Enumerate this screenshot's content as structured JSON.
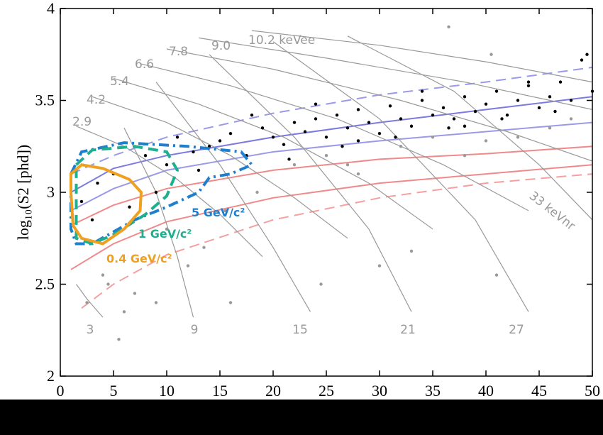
{
  "chart_data": {
    "type": "scatter",
    "y_label": "log₁₀(S2 [phd])",
    "xlim": [
      0,
      50
    ],
    "xticks": [
      0,
      5,
      10,
      15,
      20,
      25,
      30,
      35,
      40,
      45,
      50
    ],
    "ylim": [
      2,
      4
    ],
    "yticks": [
      2,
      2.5,
      3,
      3.5,
      4
    ],
    "annotations": [
      "10.2 keVee",
      "9.0",
      "7.8",
      "6.6",
      "5.4",
      "4.2",
      "2.9",
      "33 keVnr",
      "3",
      "9",
      "15",
      "21",
      "27"
    ],
    "lines": [
      {
        "color": "#9a9ae8",
        "dash": "dashed",
        "x": [
          1,
          5,
          10,
          20,
          30,
          40,
          50
        ],
        "y": [
          3.1,
          3.2,
          3.3,
          3.43,
          3.53,
          3.6,
          3.68
        ]
      },
      {
        "color": "#7a7ae0",
        "dash": "solid",
        "x": [
          1,
          5,
          10,
          20,
          30,
          40,
          50
        ],
        "y": [
          3.0,
          3.13,
          3.2,
          3.3,
          3.38,
          3.45,
          3.52
        ]
      },
      {
        "color": "#9a9ae8",
        "dash": "solid",
        "x": [
          1,
          5,
          10,
          20,
          30,
          40,
          50
        ],
        "y": [
          2.9,
          3.02,
          3.12,
          3.22,
          3.28,
          3.33,
          3.38
        ]
      },
      {
        "color": "#f08a8a",
        "dash": "solid",
        "x": [
          1,
          5,
          10,
          20,
          30,
          40,
          50
        ],
        "y": [
          2.82,
          2.93,
          3.02,
          3.12,
          3.18,
          3.21,
          3.25
        ]
      },
      {
        "color": "#f08a8a",
        "dash": "solid",
        "x": [
          1,
          5,
          10,
          20,
          30,
          40,
          50
        ],
        "y": [
          2.58,
          2.72,
          2.84,
          2.97,
          3.05,
          3.1,
          3.15
        ]
      },
      {
        "color": "#f4a0a0",
        "dash": "dashed",
        "x": [
          2,
          5,
          10,
          20,
          30,
          40,
          50
        ],
        "y": [
          2.37,
          2.5,
          2.66,
          2.85,
          2.97,
          3.05,
          3.1
        ]
      },
      {
        "color": "#999",
        "dash": "solid",
        "x": [
          18,
          30,
          40,
          50
        ],
        "y": [
          3.88,
          3.8,
          3.71,
          3.6
        ]
      },
      {
        "color": "#999",
        "dash": "solid",
        "x": [
          13,
          25,
          38,
          50
        ],
        "y": [
          3.84,
          3.73,
          3.6,
          3.45
        ]
      },
      {
        "color": "#999",
        "dash": "solid",
        "x": [
          10,
          20,
          32,
          42,
          50
        ],
        "y": [
          3.78,
          3.67,
          3.5,
          3.33,
          3.17
        ]
      },
      {
        "color": "#999",
        "dash": "solid",
        "x": [
          7.5,
          16,
          26,
          36,
          44
        ],
        "y": [
          3.7,
          3.58,
          3.4,
          3.15,
          2.9
        ]
      },
      {
        "color": "#999",
        "dash": "solid",
        "x": [
          5,
          13,
          21,
          29,
          35
        ],
        "y": [
          3.62,
          3.48,
          3.3,
          3.05,
          2.8
        ]
      },
      {
        "color": "#999",
        "dash": "solid",
        "x": [
          3,
          10,
          16,
          22,
          27
        ],
        "y": [
          3.52,
          3.38,
          3.2,
          2.97,
          2.75
        ]
      },
      {
        "color": "#999",
        "dash": "solid",
        "x": [
          1.5,
          6,
          11,
          15,
          19
        ],
        "y": [
          3.36,
          3.25,
          3.07,
          2.88,
          2.65
        ]
      },
      {
        "color": "#999",
        "dash": "solid",
        "x": [
          1.5,
          2.5,
          4
        ],
        "y": [
          2.5,
          2.42,
          2.32
        ]
      },
      {
        "color": "#999",
        "dash": "solid",
        "x": [
          6,
          9,
          11,
          12.5
        ],
        "y": [
          3.35,
          3.0,
          2.65,
          2.32
        ]
      },
      {
        "color": "#999",
        "dash": "solid",
        "x": [
          9,
          15,
          20,
          23.5
        ],
        "y": [
          3.6,
          3.15,
          2.7,
          2.35
        ]
      },
      {
        "color": "#999",
        "dash": "solid",
        "x": [
          14,
          22,
          29,
          33
        ],
        "y": [
          3.75,
          3.3,
          2.8,
          2.35
        ]
      },
      {
        "color": "#999",
        "dash": "solid",
        "x": [
          20,
          30,
          39,
          44
        ],
        "y": [
          3.82,
          3.4,
          2.85,
          2.35
        ]
      },
      {
        "color": "#999",
        "dash": "solid",
        "x": [
          27,
          37,
          45,
          50
        ],
        "y": [
          3.85,
          3.55,
          3.15,
          2.85
        ]
      }
    ],
    "contours": [
      {
        "label": "5 GeV/c²",
        "color": "#1f7fcf",
        "dash": "dashdot",
        "x": [
          1,
          2,
          6,
          12,
          17,
          18,
          16,
          14,
          13,
          10,
          7,
          3,
          1.5,
          1,
          1
        ],
        "y": [
          3.1,
          3.22,
          3.27,
          3.25,
          3.22,
          3.15,
          3.1,
          3.08,
          3.0,
          2.92,
          2.85,
          2.72,
          2.72,
          2.8,
          3.1
        ]
      },
      {
        "label": "1 GeV/c²",
        "color": "#1fae8e",
        "dash": "dashed",
        "x": [
          1.5,
          3,
          7,
          10,
          11,
          10,
          8,
          5,
          3,
          1.5,
          1.5
        ],
        "y": [
          3.15,
          3.23,
          3.25,
          3.22,
          3.12,
          2.98,
          2.88,
          2.77,
          2.72,
          2.75,
          3.15
        ]
      },
      {
        "label": "0.4 GeV/c²",
        "color": "#f0a020",
        "dash": "solid",
        "x": [
          1,
          1.2,
          2,
          4,
          6,
          7.5,
          7.6,
          6.5,
          4,
          2,
          1,
          1
        ],
        "y": [
          3.0,
          2.82,
          2.75,
          2.72,
          2.8,
          2.9,
          3.0,
          3.07,
          3.13,
          3.15,
          3.1,
          3.0
        ]
      }
    ],
    "points": [
      {
        "color": "#000",
        "x": [
          2,
          3.5,
          5,
          6.5,
          8,
          10,
          11,
          12.5,
          14,
          15,
          16,
          17.5,
          19,
          20,
          21,
          22,
          23,
          24,
          25,
          26,
          27,
          28,
          29,
          30,
          31,
          32,
          33,
          34,
          35,
          36,
          37,
          38,
          39,
          40,
          41,
          42,
          43,
          44,
          45,
          46,
          47,
          48,
          49,
          50,
          21.5,
          26.5,
          31.5,
          36.5,
          41.5,
          46.5,
          18,
          24,
          34,
          44,
          49.5,
          3,
          9,
          13,
          28,
          38
        ],
        "y": [
          2.95,
          3.05,
          3.1,
          2.92,
          3.2,
          3.15,
          3.3,
          3.22,
          3.25,
          3.28,
          3.32,
          3.2,
          3.35,
          3.3,
          3.26,
          3.38,
          3.33,
          3.4,
          3.3,
          3.42,
          3.35,
          3.45,
          3.38,
          3.32,
          3.47,
          3.4,
          3.36,
          3.5,
          3.42,
          3.46,
          3.4,
          3.52,
          3.44,
          3.48,
          3.55,
          3.42,
          3.5,
          3.58,
          3.46,
          3.52,
          3.6,
          3.5,
          3.72,
          3.55,
          3.18,
          3.25,
          3.3,
          3.35,
          3.4,
          3.44,
          3.42,
          3.48,
          3.55,
          3.6,
          3.75,
          2.85,
          3.0,
          3.12,
          3.28,
          3.36
        ]
      },
      {
        "color": "#999",
        "x": [
          2.5,
          4,
          5.5,
          7,
          9,
          12,
          13.5,
          16,
          18.5,
          22,
          25,
          28,
          32,
          35,
          38,
          40,
          43,
          46,
          48,
          36.5,
          40.5,
          30,
          24.5,
          15.5,
          10,
          6,
          4.5,
          41,
          33,
          27
        ],
        "y": [
          2.4,
          2.55,
          2.2,
          2.45,
          2.4,
          2.6,
          2.7,
          2.4,
          3.0,
          3.15,
          3.2,
          3.1,
          3.25,
          3.3,
          3.2,
          3.28,
          3.3,
          3.35,
          3.4,
          3.9,
          3.75,
          2.6,
          2.5,
          2.9,
          2.8,
          2.35,
          2.5,
          2.55,
          2.68,
          3.15
        ]
      }
    ]
  }
}
